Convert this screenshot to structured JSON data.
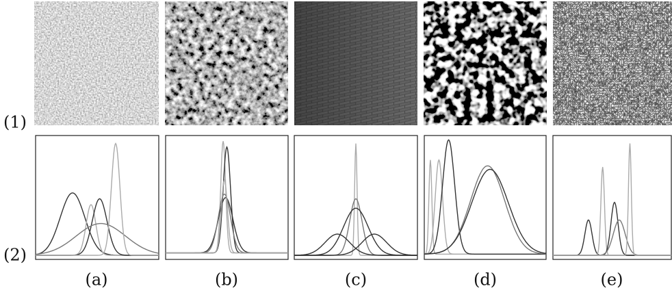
{
  "row_labels": [
    "(1)",
    "(2)"
  ],
  "column_labels": [
    "(a)",
    "(b)",
    "(c)",
    "(d)",
    "(e)"
  ]
}
